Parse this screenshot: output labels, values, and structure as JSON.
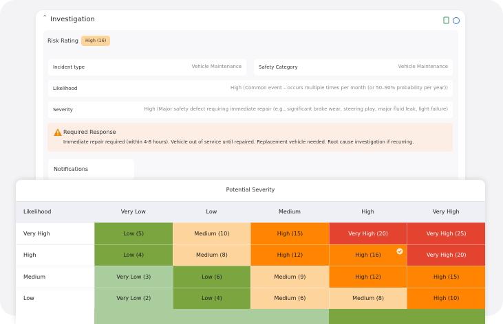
{
  "investigation": {
    "title": "Investigation",
    "risk_rating_label": "Risk Rating",
    "risk_rating": "High (16)",
    "fields": [
      {
        "label": "Incident type",
        "value": "Vehicle Maintenance"
      },
      {
        "label": "Safety Category",
        "value": "Vehicle Maintenance"
      },
      {
        "label": "Likelihood",
        "value": "High (Common event – occurs multiple times per month (or 50–90% probability per year))"
      },
      {
        "label": "Severity",
        "value": "High (Major safety defect requiring immediate repair (e.g., significant brake wear, steering play, major fluid leak, light failure)"
      }
    ],
    "response": {
      "title": "Required Response",
      "text": "Immediate repair required (within 4-8 hours). Vehicle out of service until repaired. Replacement vehicle needed. Root cause investigation if recurring."
    },
    "notifications": "Notifications"
  },
  "matrix": {
    "title": "Potential Severity",
    "row_header": "Likelihood",
    "columns": [
      "Very Low",
      "Low",
      "Medium",
      "High",
      "Very High"
    ],
    "rows": [
      {
        "name": "Very High",
        "cells": [
          {
            "text": "Low (5)",
            "color": "#7ba53e"
          },
          {
            "text": "Medium (10)",
            "color": "#fdd49b"
          },
          {
            "text": "High (15)",
            "color": "#ff8402"
          },
          {
            "text": "Very High (20)",
            "color": "#e4432f"
          },
          {
            "text": "Very High (25)",
            "color": "#e4432f"
          }
        ]
      },
      {
        "name": "High",
        "cells": [
          {
            "text": "Low (4)",
            "color": "#7ba53e"
          },
          {
            "text": "Medium (8)",
            "color": "#fdd49b"
          },
          {
            "text": "High (12)",
            "color": "#ff8402"
          },
          {
            "text": "High (16)",
            "color": "#ff8402",
            "selected": true
          },
          {
            "text": "Very High (20)",
            "color": "#e4432f"
          }
        ]
      },
      {
        "name": "Medium",
        "cells": [
          {
            "text": "Very Low (3)",
            "color": "#a9cd9c"
          },
          {
            "text": "Low (6)",
            "color": "#7ba53e"
          },
          {
            "text": "Medium (9)",
            "color": "#fdd49b"
          },
          {
            "text": "High (12)",
            "color": "#ff8402"
          },
          {
            "text": "High (15)",
            "color": "#ff8402"
          }
        ]
      },
      {
        "name": "Low",
        "cells": [
          {
            "text": "Very Low (2)",
            "color": "#a9cd9c"
          },
          {
            "text": "Low (4)",
            "color": "#7ba53e"
          },
          {
            "text": "Medium (6)",
            "color": "#fdd49b"
          },
          {
            "text": "Medium (8)",
            "color": "#fdd49b"
          },
          {
            "text": "High (10)",
            "color": "#ff8402"
          }
        ]
      }
    ]
  }
}
